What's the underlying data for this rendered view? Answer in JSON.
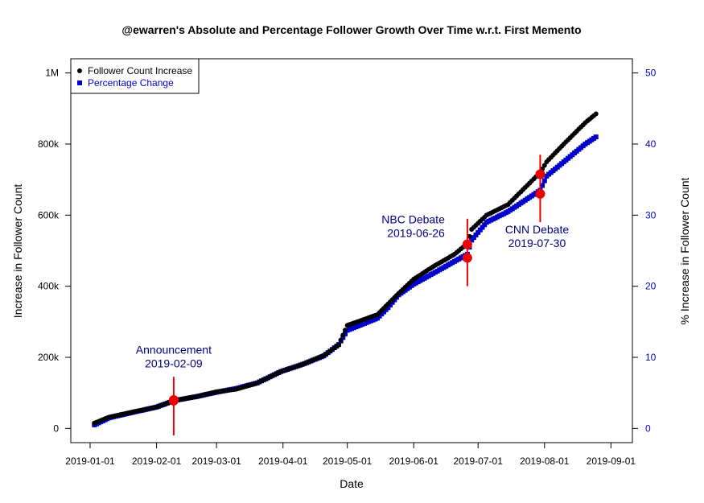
{
  "chart_data": {
    "type": "line",
    "title": "@ewarren's Absolute and Percentage Follower Growth Over Time w.r.t. First Memento",
    "xlabel": "Date",
    "ylabel_left": "Increase in Follower Count",
    "ylabel_right": "% Increase in Follower Count",
    "x_ticks": [
      "2019-01-01",
      "2019-02-01",
      "2019-03-01",
      "2019-04-01",
      "2019-05-01",
      "2019-06-01",
      "2019-07-01",
      "2019-08-01",
      "2019-09-01"
    ],
    "y_left_ticks": [
      {
        "value": 0,
        "label": "0"
      },
      {
        "value": 200000,
        "label": "200k"
      },
      {
        "value": 400000,
        "label": "400k"
      },
      {
        "value": 600000,
        "label": "600k"
      },
      {
        "value": 800000,
        "label": "800k"
      },
      {
        "value": 1000000,
        "label": "1M"
      }
    ],
    "y_right_ticks": [
      {
        "value": 0,
        "label": "0"
      },
      {
        "value": 10,
        "label": "10"
      },
      {
        "value": 20,
        "label": "20"
      },
      {
        "value": 30,
        "label": "30"
      },
      {
        "value": 40,
        "label": "40"
      },
      {
        "value": 50,
        "label": "50"
      }
    ],
    "xlim": [
      "2018-12-23",
      "2019-09-11"
    ],
    "ylim_left": [
      -40000,
      1040000
    ],
    "ylim_right": [
      -2,
      52
    ],
    "legend_position": "top-left",
    "series": [
      {
        "name": "Follower Count Increase",
        "axis": "left",
        "color": "#000000",
        "marker": "circle",
        "points": [
          [
            "2019-01-03",
            15000
          ],
          [
            "2019-01-10",
            32000
          ],
          [
            "2019-01-20",
            45000
          ],
          [
            "2019-02-01",
            60000
          ],
          [
            "2019-02-09",
            78000
          ],
          [
            "2019-02-20",
            90000
          ],
          [
            "2019-03-01",
            103000
          ],
          [
            "2019-03-10",
            110000
          ],
          [
            "2019-03-20",
            128000
          ],
          [
            "2019-03-31",
            160000
          ],
          [
            "2019-04-10",
            180000
          ],
          [
            "2019-04-20",
            205000
          ],
          [
            "2019-04-27",
            235000
          ],
          [
            "2019-05-01",
            290000
          ],
          [
            "2019-05-15",
            320000
          ],
          [
            "2019-05-20",
            350000
          ],
          [
            "2019-05-25",
            380000
          ],
          [
            "2019-06-01",
            420000
          ],
          [
            "2019-06-10",
            455000
          ],
          [
            "2019-06-20",
            490000
          ],
          [
            "2019-06-26",
            520000
          ],
          [
            "2019-06-28",
            560000
          ],
          [
            "2019-07-05",
            600000
          ],
          [
            "2019-07-15",
            630000
          ],
          [
            "2019-07-25",
            690000
          ],
          [
            "2019-07-30",
            720000
          ],
          [
            "2019-08-02",
            750000
          ],
          [
            "2019-08-10",
            800000
          ],
          [
            "2019-08-20",
            860000
          ],
          [
            "2019-08-25",
            885000
          ]
        ]
      },
      {
        "name": "Percentage Change",
        "axis": "right",
        "color": "#0000cc",
        "marker": "square",
        "points": [
          [
            "2019-01-03",
            0.5
          ],
          [
            "2019-01-10",
            1.5
          ],
          [
            "2019-01-20",
            2.2
          ],
          [
            "2019-02-01",
            3.0
          ],
          [
            "2019-02-09",
            3.9
          ],
          [
            "2019-02-20",
            4.5
          ],
          [
            "2019-03-01",
            5.1
          ],
          [
            "2019-03-10",
            5.6
          ],
          [
            "2019-03-20",
            6.4
          ],
          [
            "2019-03-31",
            8.0
          ],
          [
            "2019-04-10",
            9.0
          ],
          [
            "2019-04-20",
            10.2
          ],
          [
            "2019-04-27",
            11.8
          ],
          [
            "2019-05-01",
            13.8
          ],
          [
            "2019-05-15",
            15.5
          ],
          [
            "2019-05-20",
            17.0
          ],
          [
            "2019-05-25",
            18.8
          ],
          [
            "2019-06-01",
            20.3
          ],
          [
            "2019-06-10",
            21.8
          ],
          [
            "2019-06-20",
            23.5
          ],
          [
            "2019-06-26",
            24.5
          ],
          [
            "2019-06-28",
            26.5
          ],
          [
            "2019-07-05",
            29.0
          ],
          [
            "2019-07-15",
            30.5
          ],
          [
            "2019-07-25",
            32.5
          ],
          [
            "2019-07-30",
            33.5
          ],
          [
            "2019-08-02",
            35.5
          ],
          [
            "2019-08-10",
            37.5
          ],
          [
            "2019-08-20",
            40.0
          ],
          [
            "2019-08-25",
            41.0
          ]
        ]
      }
    ],
    "events": [
      {
        "label": "Announcement",
        "date": "2019-02-09",
        "left_value": 80000,
        "right_value": 3.9,
        "label_pos": "above-left",
        "line_from": -20000,
        "line_to": 145000
      },
      {
        "label": "NBC Debate",
        "date": "2019-06-26",
        "left_value": 518000,
        "right_value": 24.0,
        "label_pos": "left",
        "line_from": 400000,
        "line_to": 590000
      },
      {
        "label": "CNN Debate",
        "date": "2019-07-30",
        "left_value": 715000,
        "right_value": 33.0,
        "label_pos": "below-left",
        "line_from": 580000,
        "line_to": 770000
      }
    ],
    "annotation_color": "#000080",
    "event_marker_color": "#ee0000"
  }
}
